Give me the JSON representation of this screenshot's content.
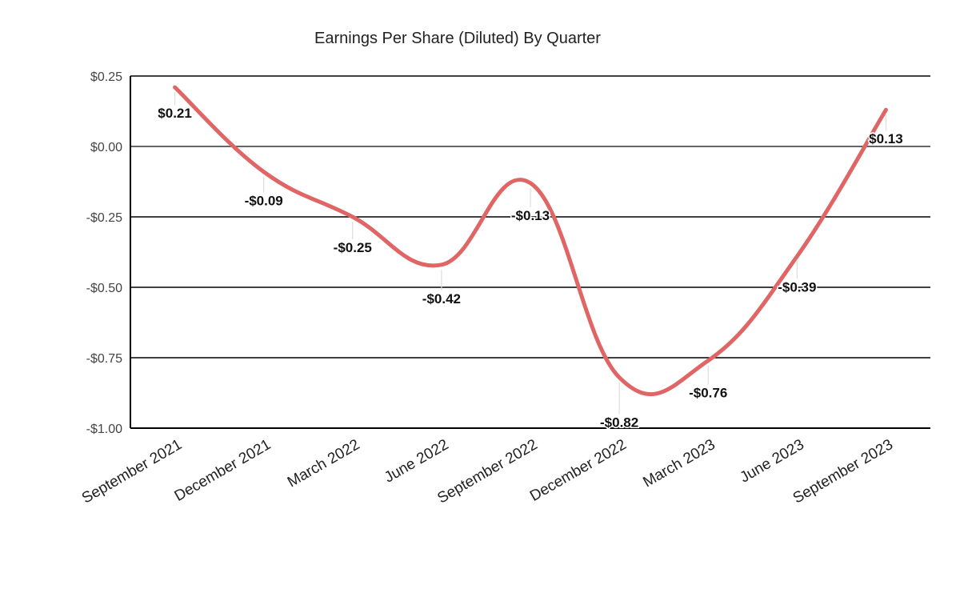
{
  "chart_data": {
    "type": "line",
    "title": "Earnings Per Share (Diluted) By Quarter",
    "xlabel": "",
    "ylabel": "",
    "categories": [
      "September 2021",
      "December 2021",
      "March 2022",
      "June 2022",
      "September 2022",
      "December 2022",
      "March 2023",
      "June 2023",
      "September 2023"
    ],
    "series": [
      {
        "name": "Earnings Per Share (Diluted)",
        "values": [
          0.21,
          -0.09,
          -0.25,
          -0.42,
          -0.13,
          -0.82,
          -0.76,
          -0.39,
          0.13
        ],
        "labels": [
          "$0.21",
          "-$0.09",
          "-$0.25",
          "-$0.42",
          "-$0.13",
          "-$0.82",
          "-$0.76",
          "-$0.39",
          "$0.13"
        ],
        "color": "#e06666",
        "smooth": true
      }
    ],
    "ylim": [
      -1.0,
      0.25
    ],
    "yticks": [
      0.25,
      0.0,
      -0.25,
      -0.5,
      -0.75,
      -1.0
    ],
    "ytick_labels": [
      "$0.25",
      "$0.00",
      "-$0.25",
      "-$0.50",
      "-$0.75",
      "-$1.00"
    ],
    "grid": true,
    "legend": "none"
  }
}
